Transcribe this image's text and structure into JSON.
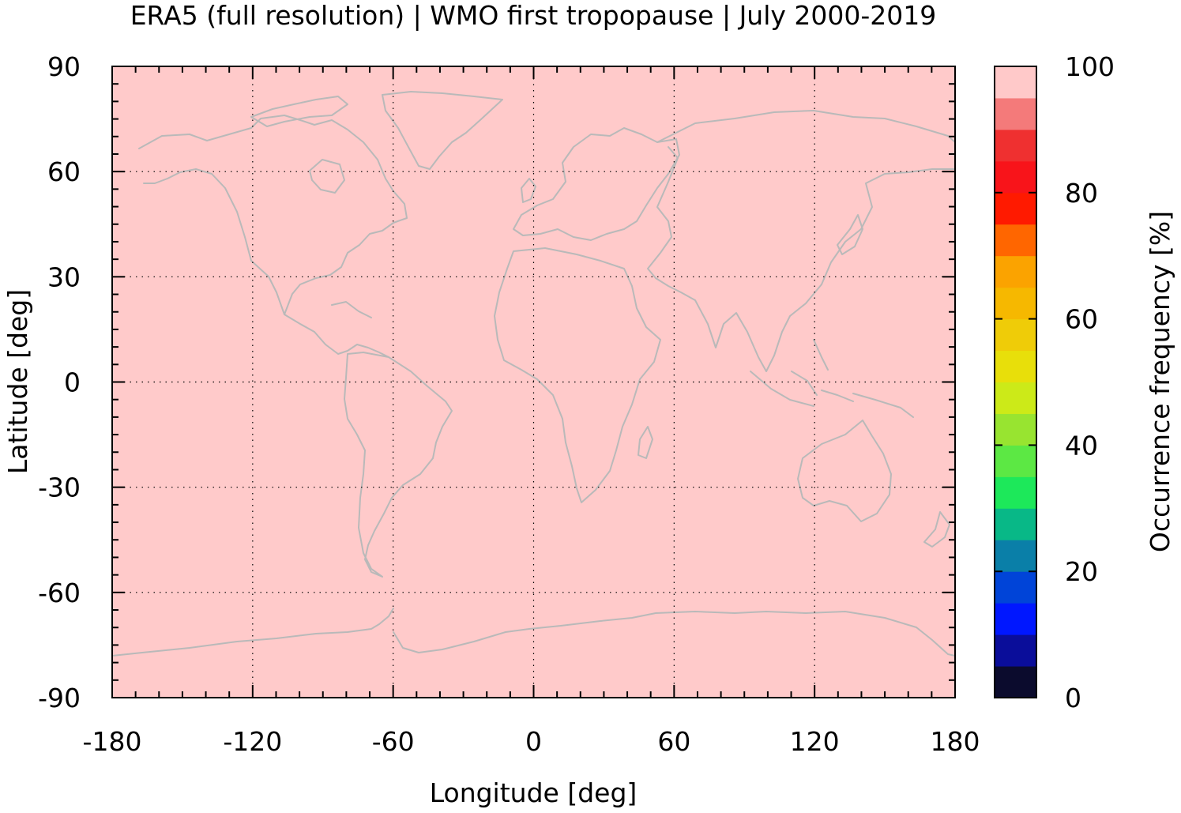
{
  "chart_data": {
    "type": "heatmap",
    "title": "ERA5 (full resolution) | WMO first tropopause | July 2000-2019",
    "xlabel": "Longitude [deg]",
    "ylabel": "Latitude [deg]",
    "xlim": [
      -180,
      180
    ],
    "ylim": [
      -90,
      90
    ],
    "x_ticks": [
      -180,
      -120,
      -60,
      0,
      60,
      120,
      180
    ],
    "y_ticks": [
      -90,
      -60,
      -30,
      0,
      30,
      60,
      90
    ],
    "x_tick_labels": [
      "-180",
      "-120",
      "-60",
      "0",
      "60",
      "120",
      "180"
    ],
    "y_tick_labels": [
      "-90",
      "-60",
      "-30",
      "0",
      "30",
      "60",
      "90"
    ],
    "grid": true,
    "field": {
      "description_value": 100,
      "uniform": true,
      "lon_range": [
        -180,
        180
      ],
      "lat_range": [
        -90,
        90
      ]
    },
    "colorbar": {
      "label": "Occurrence frequency [%]",
      "range": [
        0,
        100
      ],
      "ticks": [
        0,
        20,
        40,
        60,
        80,
        100
      ],
      "tick_labels": [
        "0",
        "20",
        "40",
        "60",
        "80",
        "100"
      ],
      "levels": [
        {
          "from": 0,
          "to": 5,
          "color": "#0b0b2d"
        },
        {
          "from": 5,
          "to": 10,
          "color": "#0a0d9a"
        },
        {
          "from": 10,
          "to": 15,
          "color": "#0017ff"
        },
        {
          "from": 15,
          "to": 20,
          "color": "#0044d8"
        },
        {
          "from": 20,
          "to": 25,
          "color": "#0a7fa8"
        },
        {
          "from": 25,
          "to": 30,
          "color": "#08b887"
        },
        {
          "from": 30,
          "to": 35,
          "color": "#1de85a"
        },
        {
          "from": 35,
          "to": 40,
          "color": "#5ce844"
        },
        {
          "from": 40,
          "to": 45,
          "color": "#98e430"
        },
        {
          "from": 45,
          "to": 50,
          "color": "#ccea18"
        },
        {
          "from": 50,
          "to": 55,
          "color": "#e8df0a"
        },
        {
          "from": 55,
          "to": 60,
          "color": "#efcc08"
        },
        {
          "from": 60,
          "to": 65,
          "color": "#f6b800"
        },
        {
          "from": 65,
          "to": 70,
          "color": "#fba300"
        },
        {
          "from": 70,
          "to": 75,
          "color": "#ff6600"
        },
        {
          "from": 75,
          "to": 80,
          "color": "#ff1a00"
        },
        {
          "from": 80,
          "to": 85,
          "color": "#f8141a"
        },
        {
          "from": 85,
          "to": 90,
          "color": "#ef3030"
        },
        {
          "from": 90,
          "to": 95,
          "color": "#f47a7a"
        },
        {
          "from": 95,
          "to": 100,
          "color": "#ffc9c9"
        }
      ]
    }
  },
  "colors": {
    "field_fill": "#ffcaca",
    "coastline": "#b9b9b9",
    "axis": "#000000",
    "grid": "#000000"
  }
}
